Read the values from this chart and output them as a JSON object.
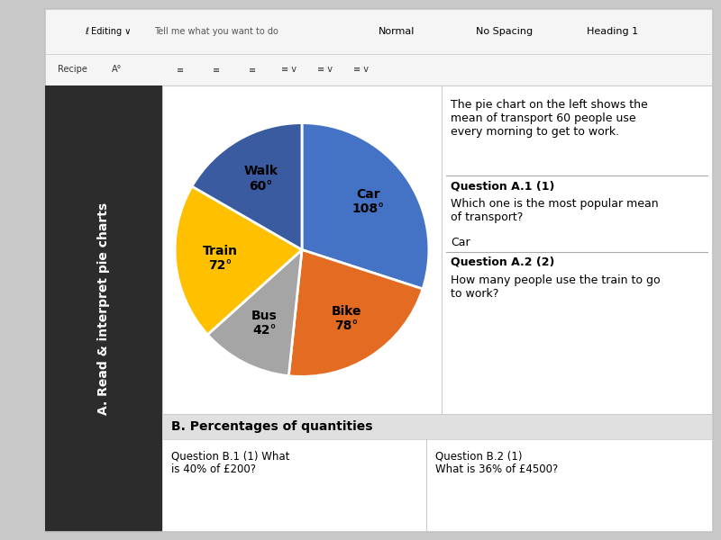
{
  "description": "The pie chart on the left shows the\nmean of transport 60 people use\nevery morning to get to work.",
  "question_a1_label": "Question A.1 (1)",
  "question_a1_text": "Which one is the most popular mean\nof transport?",
  "answer_a1": "Car",
  "question_a2_label": "Question A.2 (2)",
  "question_a2_text": "How many people use the train to go\nto work?",
  "section_b_title": "B. Percentages of quantities",
  "question_b1": "Question B.1 (1) What\nis 40% of £200?",
  "question_b2": "Question B.2 (1)\nWhat is 36% of £4500?",
  "toolbar_items": [
    "Normal",
    "No Spacing",
    "Heading 1"
  ],
  "toolbar_left_items": [
    "ℓ Editing ∨",
    "Tell me what you want to do"
  ],
  "sidebar_title": "A. Read & interpret pie charts",
  "slices": [
    {
      "label": "Car",
      "degrees": 108,
      "color": "#4472C4"
    },
    {
      "label": "Bike",
      "degrees": 78,
      "color": "#E36C22"
    },
    {
      "label": "Bus",
      "degrees": 42,
      "color": "#A5A5A5"
    },
    {
      "label": "Train",
      "degrees": 72,
      "color": "#FFC000"
    },
    {
      "label": "Walk",
      "degrees": 60,
      "color": "#3A5BA0"
    }
  ],
  "bg_color": "#C8C8C8",
  "doc_bg": "#F2F2F2",
  "white": "#FFFFFF",
  "sidebar_dark": "#2C2C2C",
  "toolbar_bg": "#F5F5F5",
  "divider_color": "#AAAAAA",
  "section_b_bar": "#E0E0E0"
}
